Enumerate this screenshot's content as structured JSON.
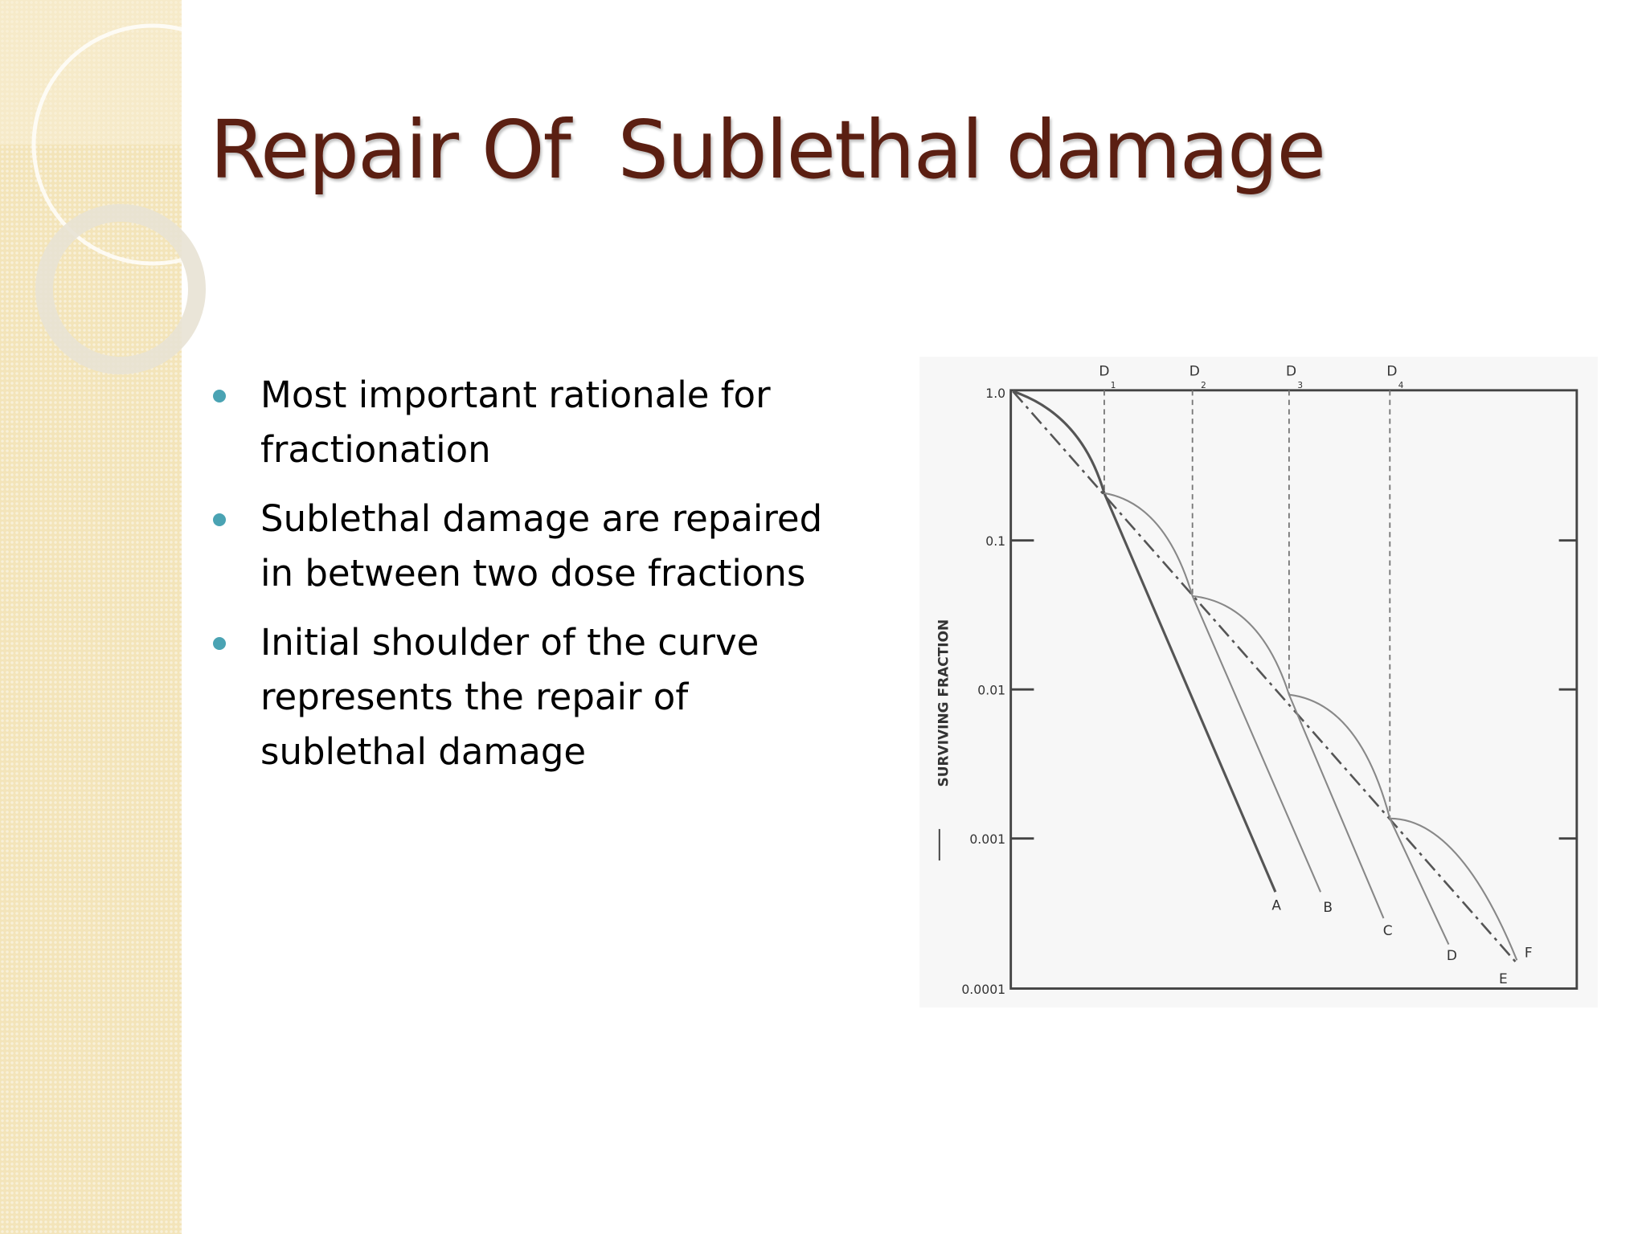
{
  "slide": {
    "title": "Repair Of  Sublethal damage",
    "bullets": [
      "Most important rationale for fractionation",
      "Sublethal damage are repaired in between two dose fractions",
      "Initial shoulder of the curve represents the repair of sublethal damage"
    ],
    "figure": {
      "y_axis_label": "SURVIVING FRACTION",
      "y_tick_labels": [
        "1.0",
        "0.1",
        "0.01",
        "0.001",
        "0.0001"
      ],
      "dose_labels": [
        {
          "letter": "D",
          "sub": "1"
        },
        {
          "letter": "D",
          "sub": "2"
        },
        {
          "letter": "D",
          "sub": "3"
        },
        {
          "letter": "D",
          "sub": "4"
        }
      ],
      "curve_labels": [
        "A",
        "B",
        "C",
        "D",
        "E",
        "F"
      ]
    }
  }
}
